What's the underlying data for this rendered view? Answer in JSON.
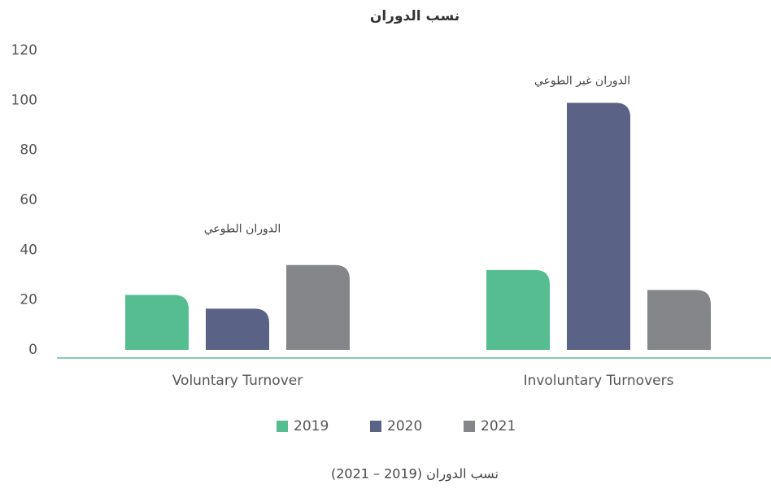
{
  "chart_data": {
    "type": "bar",
    "title": "نسب الدوران",
    "categories": [
      "Voluntary Turnover",
      "Involuntary Turnovers"
    ],
    "annotations": [
      "الدوران الطوعي",
      "الدوران غير الطوعي"
    ],
    "series": [
      {
        "name": "2019",
        "color": "#55bd8f",
        "values": [
          22,
          32
        ]
      },
      {
        "name": "2020",
        "color": "#5a6285",
        "values": [
          16.5,
          99
        ]
      },
      {
        "name": "2021",
        "color": "#858689",
        "values": [
          34,
          24
        ]
      }
    ],
    "ylim": [
      0,
      120
    ],
    "yticks": [
      0,
      20,
      40,
      60,
      80,
      100,
      120
    ],
    "grid": false,
    "legend": "bottom",
    "caption": "نسب الدوران (2019 – 2021)"
  }
}
